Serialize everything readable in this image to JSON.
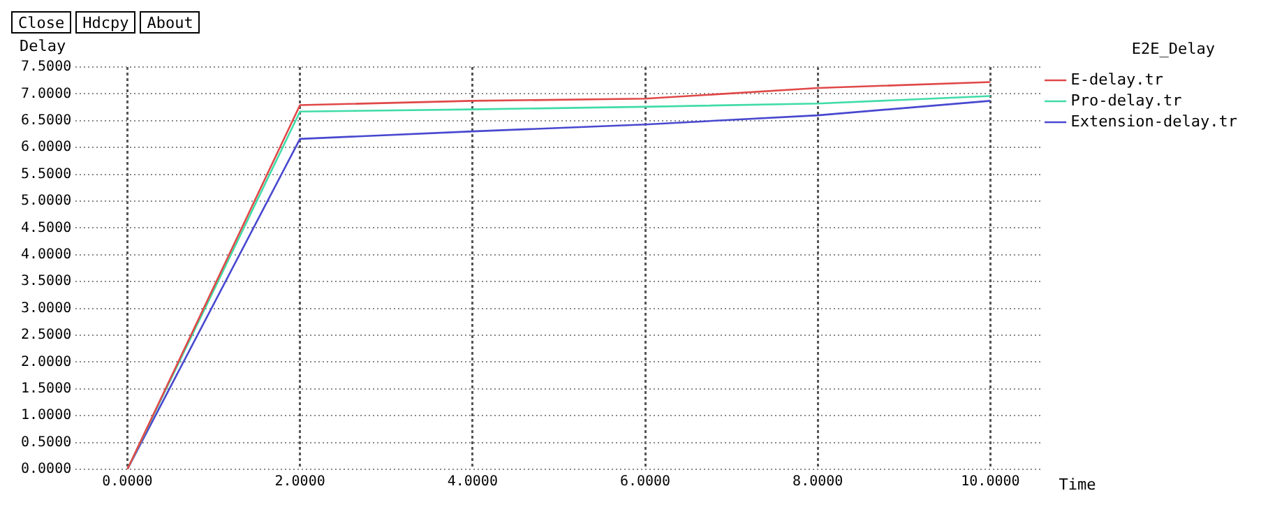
{
  "chart_data": {
    "type": "line",
    "title": "E2E_Delay",
    "xlabel": "Time",
    "ylabel": "Delay",
    "annotations": [
      "Close",
      "Hdcpy",
      "About"
    ],
    "x": [
      0,
      2,
      4,
      6,
      8,
      10
    ],
    "series": [
      {
        "name": "E-delay.tr",
        "color": "#e04848",
        "values": [
          0,
          6.79,
          6.87,
          6.91,
          7.11,
          7.22
        ]
      },
      {
        "name": "Pro-delay.tr",
        "color": "#40dca8",
        "values": [
          0,
          6.67,
          6.71,
          6.76,
          6.82,
          6.96
        ]
      },
      {
        "name": "Extension-delay.tr",
        "color": "#4848d0",
        "values": [
          0,
          6.16,
          6.3,
          6.43,
          6.6,
          6.87
        ]
      }
    ],
    "xlim": [
      -0.6,
      10.6
    ],
    "xticks": [
      {
        "value": 0,
        "label": "0.0000"
      },
      {
        "value": 2,
        "label": "2.0000"
      },
      {
        "value": 4,
        "label": "4.0000"
      },
      {
        "value": 6,
        "label": "6.0000"
      },
      {
        "value": 8,
        "label": "8.0000"
      },
      {
        "value": 10,
        "label": "10.0000"
      }
    ],
    "ylim": [
      0,
      7.5
    ],
    "yticks": [
      {
        "value": 0,
        "label": "0.0000"
      },
      {
        "value": 0.5,
        "label": "0.5000"
      },
      {
        "value": 1,
        "label": "1.0000"
      },
      {
        "value": 1.5,
        "label": "1.5000"
      },
      {
        "value": 2,
        "label": "2.0000"
      },
      {
        "value": 2.5,
        "label": "2.5000"
      },
      {
        "value": 3,
        "label": "3.0000"
      },
      {
        "value": 3.5,
        "label": "3.5000"
      },
      {
        "value": 4,
        "label": "4.0000"
      },
      {
        "value": 4.5,
        "label": "4.5000"
      },
      {
        "value": 5,
        "label": "5.0000"
      },
      {
        "value": 5.5,
        "label": "5.5000"
      },
      {
        "value": 6,
        "label": "6.0000"
      },
      {
        "value": 6.5,
        "label": "6.5000"
      },
      {
        "value": 7,
        "label": "7.0000"
      },
      {
        "value": 7.5,
        "label": "7.5000"
      }
    ],
    "grid": true,
    "legend": "right",
    "marker": "none",
    "line_style": "solid"
  }
}
